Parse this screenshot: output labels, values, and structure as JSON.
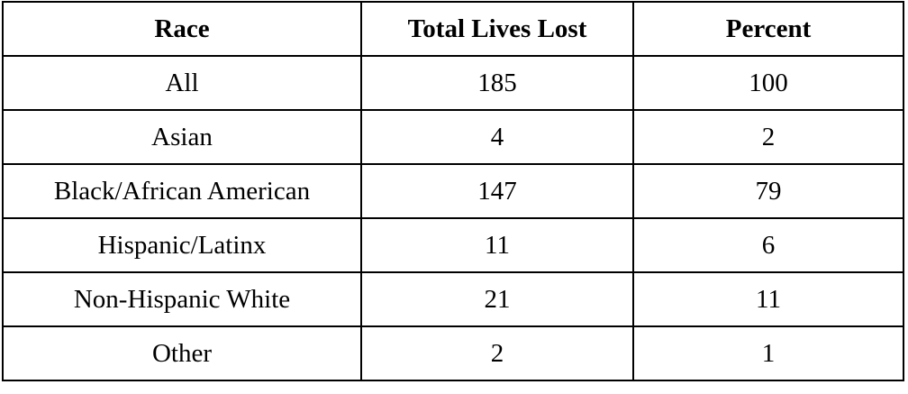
{
  "table": {
    "headers": [
      "Race",
      "Total Lives Lost",
      "Percent"
    ],
    "rows": [
      [
        "All",
        "185",
        "100"
      ],
      [
        "Asian",
        "4",
        "2"
      ],
      [
        "Black/African American",
        "147",
        "79"
      ],
      [
        "Hispanic/Latinx",
        "11",
        "6"
      ],
      [
        "Non-Hispanic White",
        "21",
        "11"
      ],
      [
        "Other",
        "2",
        "1"
      ]
    ]
  }
}
